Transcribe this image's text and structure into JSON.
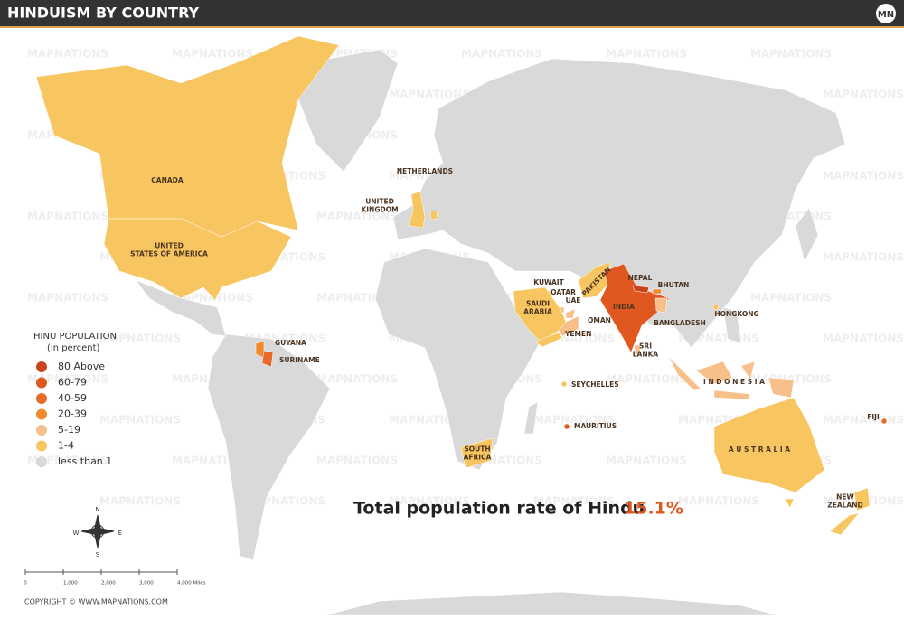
{
  "header": {
    "title": "HINDUISM BY COUNTRY",
    "logo": "MN"
  },
  "watermark": "MAPNATIONS",
  "legend": {
    "title": "HINU POPULATION",
    "subtitle": "(in percent)",
    "items": [
      {
        "label": "80 Above",
        "color": "#c9431e"
      },
      {
        "label": "60-79",
        "color": "#e0571f"
      },
      {
        "label": "40-59",
        "color": "#e8692a"
      },
      {
        "label": "20-39",
        "color": "#f08a2c"
      },
      {
        "label": "5-19",
        "color": "#f7c08a"
      },
      {
        "label": "1-4",
        "color": "#f8c660"
      },
      {
        "label": "less than 1",
        "color": "#d9d9d9"
      }
    ]
  },
  "countries": [
    {
      "label": [
        "CANADA"
      ],
      "color": "#f8c660"
    },
    {
      "label": [
        "UNITED",
        "STATES OF AMERICA"
      ],
      "color": "#f8c660"
    },
    {
      "label": [
        "NETHERLANDS"
      ],
      "color": "#f8c660"
    },
    {
      "label": [
        "UNITED",
        "KINGDOM"
      ],
      "color": "#f8c660"
    },
    {
      "label": [
        "GUYANA"
      ],
      "color": "#f08a2c"
    },
    {
      "label": [
        "SURINAME"
      ],
      "color": "#e8692a"
    },
    {
      "label": [
        "KUWAIT"
      ],
      "color": "#f7c08a"
    },
    {
      "label": [
        "QATAR"
      ],
      "color": "#f7c08a"
    },
    {
      "label": [
        "UAE"
      ],
      "color": "#f7c08a"
    },
    {
      "label": [
        "SAUDI",
        "ARABIA"
      ],
      "color": "#f8c660"
    },
    {
      "label": [
        "OMAN"
      ],
      "color": "#f7c08a"
    },
    {
      "label": [
        "YEMEN"
      ],
      "color": "#f8c660"
    },
    {
      "label": [
        "PAKISTAN"
      ],
      "color": "#f8c660"
    },
    {
      "label": [
        "INDIA"
      ],
      "color": "#e0571f"
    },
    {
      "label": [
        "NEPAL"
      ],
      "color": "#c9431e"
    },
    {
      "label": [
        "BHUTAN"
      ],
      "color": "#f08a2c"
    },
    {
      "label": [
        "BANGLADESH"
      ],
      "color": "#f7c08a"
    },
    {
      "label": [
        "SRI",
        "LANKA"
      ],
      "color": "#f7c08a"
    },
    {
      "label": [
        "HONGKONG"
      ],
      "color": "#f8c660"
    },
    {
      "label": [
        "I N D O N E S I A"
      ],
      "color": "#f7c08a"
    },
    {
      "label": [
        "SEYCHELLES"
      ],
      "color": "#f8c660"
    },
    {
      "label": [
        "MAURITIUS"
      ],
      "color": "#e0571f"
    },
    {
      "label": [
        "SOUTH",
        "AFRICA"
      ],
      "color": "#f8c660"
    },
    {
      "label": [
        "A U S T R A L I A"
      ],
      "color": "#f8c660"
    },
    {
      "label": [
        "NEW",
        "ZEALAND"
      ],
      "color": "#f8c660"
    },
    {
      "label": [
        "FIJI"
      ],
      "color": "#e8692a"
    }
  ],
  "total": {
    "text": "Total population rate of Hindu",
    "value": "15.1%"
  },
  "compass": {
    "n": "N",
    "s": "S",
    "e": "E",
    "w": "W"
  },
  "scale": [
    "0",
    "1,000",
    "2,000",
    "3,000",
    "4,000 Miles"
  ],
  "copyright": "COPYRIGHT © WWW.MAPNATIONS.COM"
}
